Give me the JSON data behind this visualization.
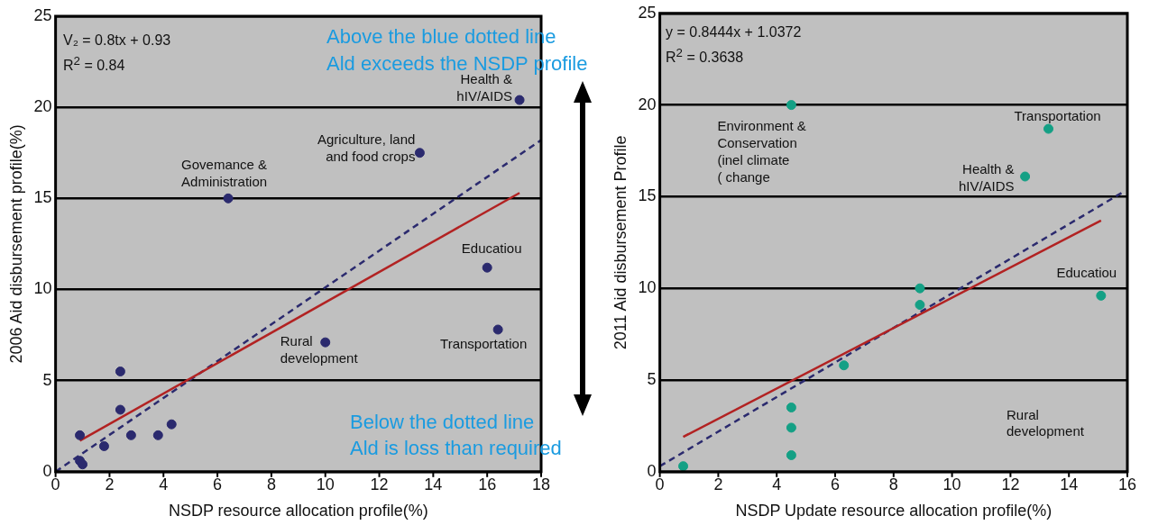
{
  "chart_data": [
    {
      "type": "scatter",
      "xlabel": "NSDP resource allocation profile(%)",
      "ylabel": "2006 Aid disbursement profile(%)",
      "xlim": [
        0,
        18
      ],
      "ylim": [
        0,
        25
      ],
      "xticks": [
        0,
        2,
        4,
        6,
        8,
        10,
        12,
        14,
        16,
        18
      ],
      "yticks": [
        0,
        5,
        10,
        15,
        20,
        25
      ],
      "grid": "y",
      "legend": false,
      "series": [
        {
          "type": "scatter",
          "marker": "circle",
          "color": "#2b2a6e",
          "x": [
            0.9,
            0.9,
            1.0,
            1.8,
            2.4,
            2.4,
            2.8,
            3.8,
            4.3,
            6.4,
            10.0,
            13.5,
            16.0,
            16.4,
            17.2
          ],
          "values": [
            2.0,
            0.6,
            0.4,
            1.4,
            5.5,
            3.4,
            2.0,
            2.0,
            2.6,
            15.0,
            7.1,
            17.5,
            11.2,
            7.8,
            20.4
          ]
        },
        {
          "type": "line",
          "color": "#b22222",
          "line_style": "solid",
          "x": [
            0.9,
            17.2
          ],
          "values": [
            1.7,
            15.3
          ]
        },
        {
          "type": "line",
          "color": "#2b2a6e",
          "line_style": "dashed",
          "x": [
            0,
            18
          ],
          "values": [
            0,
            18.2
          ]
        }
      ],
      "annotations": [
        "V₂ = 0.8tx + 0.93",
        "R$^{2}$ = 0.84",
        "Above the blue dotted line",
        "Ald exceeds the NSDP profile",
        "Below the dotted line",
        "Ald is loss than required",
        {
          "text": "Health &\nhIV/AIDS",
          "x": 17.2,
          "y": 20.4
        },
        {
          "text": "Agriculture, land\nand food crops",
          "x": 13.5,
          "y": 17.5
        },
        {
          "text": "Govemance &\nAdministration",
          "x": 6.4,
          "y": 15.0
        },
        {
          "text": "Educatiou",
          "x": 16.0,
          "y": 11.2
        },
        {
          "text": "Transportation",
          "x": 16.4,
          "y": 7.8
        },
        {
          "text": "Rural\ndevelopment",
          "x": 10.0,
          "y": 7.1
        }
      ]
    },
    {
      "type": "scatter",
      "xlabel": "NSDP Update resource allocation profile(%)",
      "ylabel": "2011 Aid disbursement Profile",
      "xlim": [
        0,
        16
      ],
      "ylim": [
        0,
        25
      ],
      "xticks": [
        0,
        2,
        4,
        6,
        8,
        10,
        12,
        14,
        16
      ],
      "yticks": [
        0,
        5,
        10,
        15,
        20,
        25
      ],
      "grid": "y",
      "legend": false,
      "series": [
        {
          "type": "scatter",
          "marker": "circle",
          "color": "#14a085",
          "x": [
            0.8,
            4.5,
            4.5,
            4.5,
            6.3,
            8.9,
            8.9,
            4.5,
            13.3,
            12.5,
            15.1
          ],
          "values": [
            0.3,
            0.9,
            2.4,
            3.5,
            5.8,
            10.0,
            9.1,
            20.0,
            18.7,
            16.1,
            9.6
          ]
        },
        {
          "type": "line",
          "color": "#b22222",
          "line_style": "solid",
          "x": [
            0.8,
            15.1
          ],
          "values": [
            1.9,
            13.7
          ]
        },
        {
          "type": "line",
          "color": "#2b2a6e",
          "line_style": "dashed",
          "x": [
            0,
            15.8
          ],
          "values": [
            0.3,
            15.2
          ]
        }
      ],
      "annotations": [
        "y = 0.8444x + 1.0372",
        "R$^{2}$ = 0.3638",
        "Rural\ndevelopment",
        {
          "text": "Environment &\nConservation\n(inel climate\n( change",
          "x": 4.5,
          "y": 20.0
        },
        {
          "text": "Transportation",
          "x": 13.3,
          "y": 18.7
        },
        {
          "text": "Health &\nhIV/AIDS",
          "x": 12.5,
          "y": 16.1
        },
        {
          "text": "Educatiou",
          "x": 15.1,
          "y": 9.6
        }
      ]
    }
  ]
}
